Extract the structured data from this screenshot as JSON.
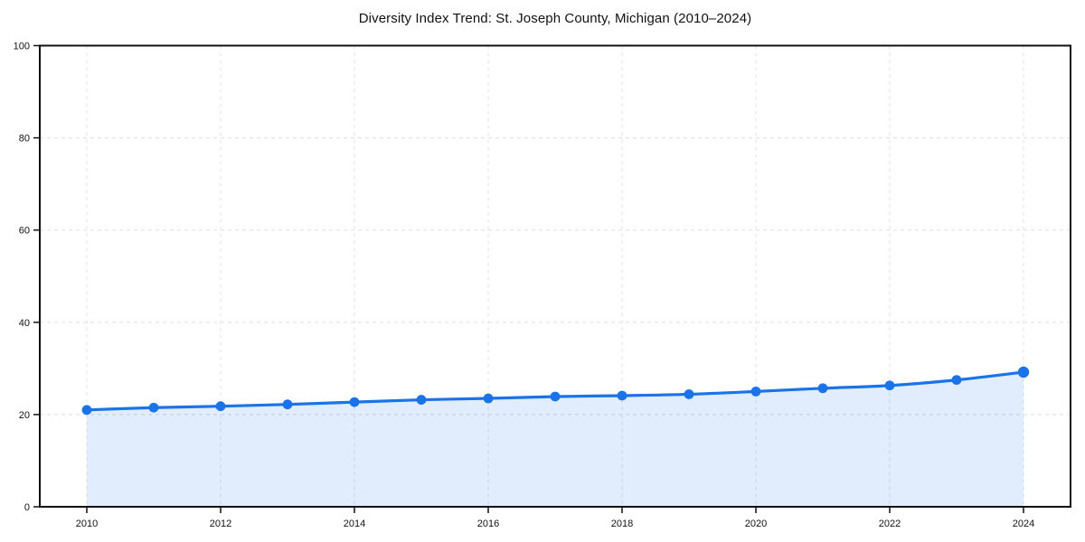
{
  "chart_data": {
    "type": "line",
    "title": "Diversity Index Trend: St. Joseph County, Michigan (2010–2024)",
    "x": [
      2010,
      2011,
      2012,
      2013,
      2014,
      2015,
      2016,
      2017,
      2018,
      2019,
      2020,
      2021,
      2022,
      2023,
      2024
    ],
    "series": [
      {
        "name": "Diversity Index",
        "values": [
          21.0,
          21.5,
          21.8,
          22.2,
          22.7,
          23.2,
          23.5,
          23.9,
          24.1,
          24.4,
          25.0,
          25.7,
          26.3,
          27.5,
          29.2
        ]
      }
    ],
    "xlabel": "",
    "ylabel": "",
    "xlim": [
      2010,
      2024
    ],
    "ylim": [
      0,
      100
    ],
    "yticks": [
      0,
      20,
      40,
      60,
      80,
      100
    ],
    "xticks": [
      2010,
      2012,
      2014,
      2016,
      2018,
      2020,
      2022,
      2024
    ],
    "grid": true,
    "grid_style": "dashed",
    "legend": false,
    "area_fill": true,
    "colors": {
      "line": "#1a73e8",
      "marker": "#1a73e8",
      "area": "rgba(26,115,232,0.13)",
      "grid": "#e2e2e2",
      "axis": "#111111",
      "background": "#ffffff"
    }
  }
}
